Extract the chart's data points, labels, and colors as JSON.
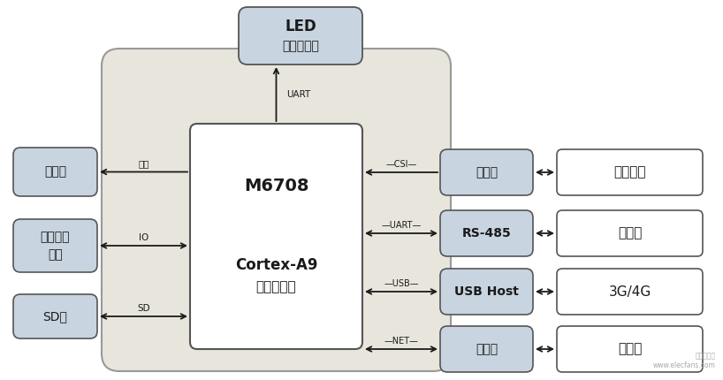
{
  "background_color": "#ffffff",
  "outer_bg_color": "#e8e6dc",
  "box_fill_light": "#c8d4e0",
  "box_fill_white": "#ffffff",
  "box_stroke": "#555555",
  "text_color": "#1a1a1a",
  "arrow_color": "#1a1a1a",
  "watermark": "www.elecfans.com",
  "font_main": "SimHei",
  "led_label1": "LED",
  "led_label2": "电子显示屏",
  "main_label1": "M6708",
  "main_label2": "Cortex-A9",
  "main_label3": "双核核心板",
  "left_labels": [
    "扬声器",
    "输入输出\n控制",
    "SD卡"
  ],
  "left_conn": [
    "音频",
    "IO",
    "SD"
  ],
  "left_conn_double": [
    false,
    true,
    true
  ],
  "right_inner_labels": [
    "摄像头",
    "RS-485",
    "USB Host",
    "以太网"
  ],
  "right_inner_conn": [
    "CSI",
    "UART",
    "USB",
    "NET"
  ],
  "right_outer_labels": [
    "图像采集",
    "通道闸",
    "3G/4G",
    "服务器"
  ],
  "right_outer_bold": [
    false,
    false,
    false,
    false
  ],
  "right_inner_bold": [
    false,
    true,
    true,
    false
  ]
}
